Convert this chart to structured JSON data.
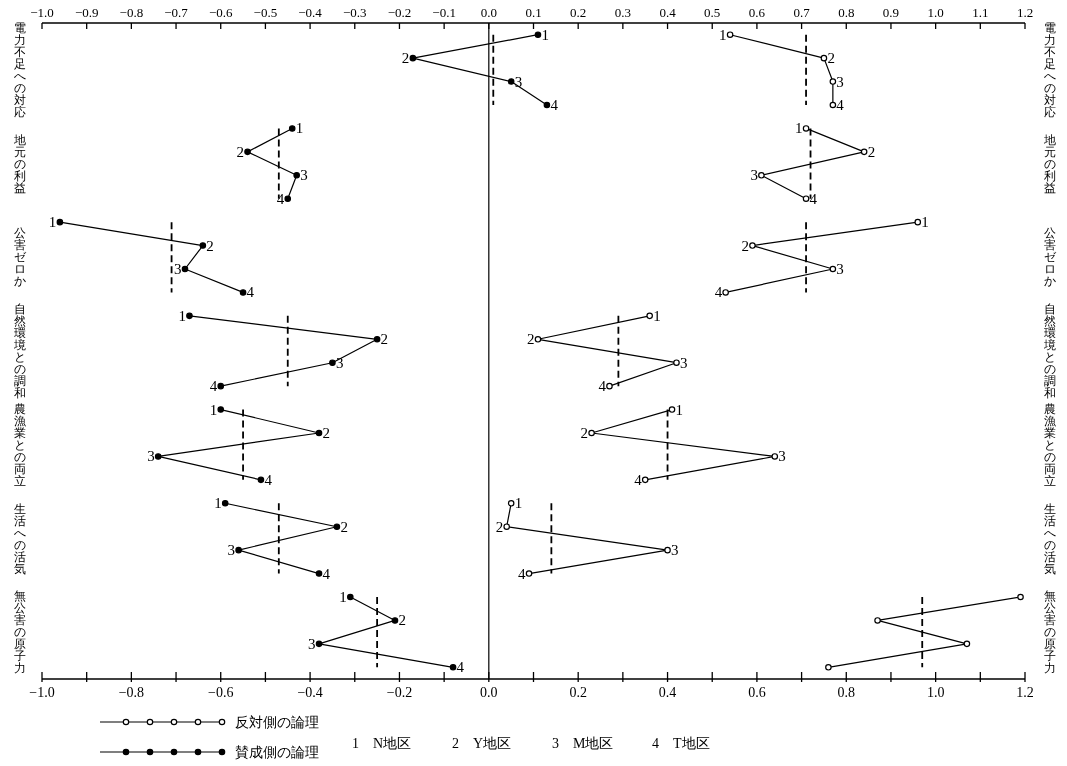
{
  "chart_data": {
    "type": "line",
    "orientation": "horizontal",
    "marker": "circle",
    "legend": "bottom left",
    "grid": false,
    "xlim": [
      -1.0,
      1.2
    ],
    "xticks": [
      {
        "value": -1.0,
        "label": "−1.0"
      },
      {
        "value": -0.9,
        "label": null
      },
      {
        "value": -0.8,
        "label": "−0.8"
      },
      {
        "value": -0.7,
        "label": null
      },
      {
        "value": -0.6,
        "label": "−0.6"
      },
      {
        "value": -0.5,
        "label": null
      },
      {
        "value": -0.4,
        "label": "−0.4"
      },
      {
        "value": -0.3,
        "label": null
      },
      {
        "value": -0.2,
        "label": "−0.2"
      },
      {
        "value": -0.1,
        "label": null
      },
      {
        "value": 0,
        "label": "0.0"
      },
      {
        "value": 0.1,
        "label": null
      },
      {
        "value": 0.2,
        "label": "0.2"
      },
      {
        "value": 0.3,
        "label": null
      },
      {
        "value": 0.4,
        "label": "0.4"
      },
      {
        "value": 0.5,
        "label": null
      },
      {
        "value": 0.6,
        "label": "0.6"
      },
      {
        "value": 0.7,
        "label": null
      },
      {
        "value": 0.8,
        "label": "0.8"
      },
      {
        "value": 0.9,
        "label": null
      },
      {
        "value": 1.0,
        "label": "1.0"
      },
      {
        "value": 1.1,
        "label": null
      },
      {
        "value": 1.2,
        "label": "1.2"
      }
    ],
    "x2lim": [
      -1.0,
      1.2
    ],
    "x2ticks": [
      {
        "value": -1.0,
        "label": "−1.0"
      },
      {
        "value": -0.9,
        "label": "−0.9"
      },
      {
        "value": -0.8,
        "label": "−0.8"
      },
      {
        "value": -0.7,
        "label": "−0.7"
      },
      {
        "value": -0.6,
        "label": "−0.6"
      },
      {
        "value": -0.5,
        "label": "−0.5"
      },
      {
        "value": -0.4,
        "label": "−0.4"
      },
      {
        "value": -0.3,
        "label": "−0.3"
      },
      {
        "value": -0.2,
        "label": "−0.2"
      },
      {
        "value": -0.1,
        "label": "−0.1"
      },
      {
        "value": 0,
        "label": "0.0"
      },
      {
        "value": 0.1,
        "label": "0.1"
      },
      {
        "value": 0.2,
        "label": "0.2"
      },
      {
        "value": 0.3,
        "label": "0.3"
      },
      {
        "value": 0.4,
        "label": "0.4"
      },
      {
        "value": 0.5,
        "label": "0.5"
      },
      {
        "value": 0.6,
        "label": "0.6"
      },
      {
        "value": 0.7,
        "label": "0.7"
      },
      {
        "value": 0.8,
        "label": "0.8"
      },
      {
        "value": 0.9,
        "label": "0.9"
      },
      {
        "value": 1.0,
        "label": "1.0"
      },
      {
        "value": 1.1,
        "label": "1.1"
      },
      {
        "value": 1.2,
        "label": "1.2"
      }
    ],
    "categories": [
      null,
      null,
      null,
      null,
      null,
      null,
      null,
      null,
      null,
      null,
      null,
      null,
      null,
      null,
      null,
      null,
      null,
      null,
      null,
      null,
      null,
      null,
      null,
      null,
      null,
      null,
      null,
      null
    ],
    "ref_lines": [
      {
        "axis": "x",
        "value": 0,
        "color": "#000000",
        "line_style": "solid"
      }
    ],
    "annotations": [
      "電力不足への対応",
      "電力不足への対応",
      "地元の利益",
      "地元の利益",
      "公害ゼロか",
      "公害ゼロか",
      "自然環境との調和",
      "自然環境との調和",
      "農漁業との両立",
      "農漁業との両立",
      "生活への活気",
      "生活への活気",
      "無公害の原子力",
      "無公害の原子力",
      "1　N地区",
      "2　Y地区",
      "3　M地区",
      "4　T地区",
      {
        "text": "1",
        "x": 0.54
      },
      {
        "text": "2",
        "x": 0.75
      },
      {
        "text": "3",
        "x": 0.77
      },
      {
        "text": "4",
        "x": 0.77
      },
      {
        "text": "1",
        "x": 0.11
      },
      {
        "text": "2",
        "x": -0.17
      },
      {
        "text": "3",
        "x": 0.05
      },
      {
        "text": "4",
        "x": 0.13
      },
      {
        "text": "1",
        "x": 0.71
      },
      {
        "text": "2",
        "x": 0.84
      },
      {
        "text": "3",
        "x": 0.61
      },
      {
        "text": "4",
        "x": 0.71
      },
      {
        "text": "1",
        "x": -0.44
      },
      {
        "text": "2",
        "x": -0.54
      },
      {
        "text": "3",
        "x": -0.43
      },
      {
        "text": "4",
        "x": -0.45
      },
      {
        "text": "1",
        "x": 0.96
      },
      {
        "text": "2",
        "x": 0.59
      },
      {
        "text": "3",
        "x": 0.77
      },
      {
        "text": "4",
        "x": 0.53
      },
      {
        "text": "1",
        "x": -0.96
      },
      {
        "text": "2",
        "x": -0.64
      },
      {
        "text": "3",
        "x": -0.68
      },
      {
        "text": "4",
        "x": -0.55
      },
      {
        "text": "1",
        "x": 0.05
      },
      {
        "text": "2",
        "x": 0.04
      },
      {
        "text": "3",
        "x": 0.4
      },
      {
        "text": "4",
        "x": 0.09
      },
      {
        "text": "1",
        "x": 0.36
      },
      {
        "text": "2",
        "x": 0.11
      },
      {
        "text": "3",
        "x": 0.42
      },
      {
        "text": "4",
        "x": 0.27
      },
      {
        "text": "1",
        "x": -0.67
      },
      {
        "text": "2",
        "x": -0.25
      },
      {
        "text": "3",
        "x": -0.35
      },
      {
        "text": "4",
        "x": -0.6
      },
      {
        "text": "1",
        "x": 0.41
      },
      {
        "text": "2",
        "x": 0.23
      },
      {
        "text": "3",
        "x": 0.64
      },
      {
        "text": "4",
        "x": 0.35
      },
      {
        "text": "1",
        "x": -0.6
      },
      {
        "text": "2",
        "x": -0.38
      },
      {
        "text": "3",
        "x": -0.74
      },
      {
        "text": "4",
        "x": -0.51
      },
      {
        "text": "1",
        "x": -0.59
      },
      {
        "text": "2",
        "x": -0.34
      },
      {
        "text": "3",
        "x": -0.56
      },
      {
        "text": "4",
        "x": -0.38
      },
      {
        "text": "1",
        "x": -0.31
      },
      {
        "text": "2",
        "x": -0.21
      },
      {
        "text": "3",
        "x": -0.38
      },
      {
        "text": "4",
        "x": -0.08
      }
    ],
    "series": [
      {
        "name": "反対側の論理",
        "color": "#000000",
        "values": [
          0.54,
          0.75,
          0.77,
          0.77,
          null,
          null,
          null,
          null,
          null,
          null,
          null,
          null,
          null,
          null,
          null,
          null,
          null,
          null,
          null,
          null,
          null,
          null,
          null,
          null,
          null,
          null,
          null,
          null
        ]
      },
      {
        "name": "賛成側の論理",
        "color": "#000000",
        "values": [
          0.11,
          -0.17,
          0.05,
          0.13,
          null,
          null,
          null,
          null,
          null,
          null,
          null,
          null,
          null,
          null,
          null,
          null,
          null,
          null,
          null,
          null,
          null,
          null,
          null,
          null,
          null,
          null,
          null,
          null
        ]
      },
      {
        "color": "#000000",
        "line_style": "dashed",
        "marker": "none",
        "values": [
          0.71,
          0.71,
          0.71,
          0.71,
          null,
          null,
          null,
          null,
          null,
          null,
          null,
          null,
          null,
          null,
          null,
          null,
          null,
          null,
          null,
          null,
          null,
          null,
          null,
          null,
          null,
          null,
          null,
          null
        ]
      },
      {
        "color": "#000000",
        "line_style": "dashed",
        "marker": "none",
        "values": [
          0.01,
          0.01,
          0.01,
          0.01,
          null,
          null,
          null,
          null,
          null,
          null,
          null,
          null,
          null,
          null,
          null,
          null,
          null,
          null,
          null,
          null,
          null,
          null,
          null,
          null,
          null,
          null,
          null,
          null
        ]
      },
      {
        "color": "#000000",
        "values": [
          null,
          null,
          null,
          null,
          0.71,
          0.84,
          0.61,
          0.71,
          null,
          null,
          null,
          null,
          null,
          null,
          null,
          null,
          null,
          null,
          null,
          null,
          null,
          null,
          null,
          null,
          null,
          null,
          null,
          null
        ]
      },
      {
        "color": "#000000",
        "values": [
          null,
          null,
          null,
          null,
          -0.44,
          -0.54,
          -0.43,
          -0.45,
          null,
          null,
          null,
          null,
          null,
          null,
          null,
          null,
          null,
          null,
          null,
          null,
          null,
          null,
          null,
          null,
          null,
          null,
          null,
          null
        ]
      },
      {
        "color": "#000000",
        "line_style": "dashed",
        "marker": "none",
        "values": [
          null,
          null,
          null,
          null,
          0.72,
          0.72,
          0.72,
          0.72,
          null,
          null,
          null,
          null,
          null,
          null,
          null,
          null,
          null,
          null,
          null,
          null,
          null,
          null,
          null,
          null,
          null,
          null,
          null,
          null
        ]
      },
      {
        "color": "#000000",
        "line_style": "dashed",
        "marker": "none",
        "values": [
          null,
          null,
          null,
          null,
          -0.47,
          -0.47,
          -0.47,
          -0.47,
          null,
          null,
          null,
          null,
          null,
          null,
          null,
          null,
          null,
          null,
          null,
          null,
          null,
          null,
          null,
          null,
          null,
          null,
          null,
          null
        ]
      },
      {
        "color": "#000000",
        "values": [
          null,
          null,
          null,
          null,
          null,
          null,
          null,
          null,
          0.96,
          0.59,
          0.77,
          0.53,
          null,
          null,
          null,
          null,
          null,
          null,
          null,
          null,
          null,
          null,
          null,
          null,
          null,
          null,
          null,
          null
        ]
      },
      {
        "color": "#000000",
        "values": [
          null,
          null,
          null,
          null,
          null,
          null,
          null,
          null,
          -0.96,
          -0.64,
          -0.68,
          -0.55,
          null,
          null,
          null,
          null,
          null,
          null,
          null,
          null,
          null,
          null,
          null,
          null,
          null,
          null,
          null,
          null
        ]
      },
      {
        "color": "#000000",
        "line_style": "dashed",
        "marker": "none",
        "values": [
          null,
          null,
          null,
          null,
          null,
          null,
          null,
          null,
          0.71,
          0.71,
          0.71,
          0.71,
          null,
          null,
          null,
          null,
          null,
          null,
          null,
          null,
          null,
          null,
          null,
          null,
          null,
          null,
          null,
          null
        ]
      },
      {
        "color": "#000000",
        "line_style": "dashed",
        "marker": "none",
        "values": [
          null,
          null,
          null,
          null,
          null,
          null,
          null,
          null,
          -0.71,
          -0.71,
          -0.71,
          -0.71,
          null,
          null,
          null,
          null,
          null,
          null,
          null,
          null,
          null,
          null,
          null,
          null,
          null,
          null,
          null,
          null
        ]
      },
      {
        "color": "#000000",
        "values": [
          null,
          null,
          null,
          null,
          null,
          null,
          null,
          null,
          null,
          null,
          null,
          null,
          0.36,
          0.11,
          0.42,
          0.27,
          null,
          null,
          null,
          null,
          null,
          null,
          null,
          null,
          null,
          null,
          null,
          null
        ]
      },
      {
        "color": "#000000",
        "values": [
          null,
          null,
          null,
          null,
          null,
          null,
          null,
          null,
          null,
          null,
          null,
          null,
          -0.67,
          -0.25,
          -0.35,
          -0.6,
          null,
          null,
          null,
          null,
          null,
          null,
          null,
          null,
          null,
          null,
          null,
          null
        ]
      },
      {
        "color": "#000000",
        "line_style": "dashed",
        "marker": "none",
        "values": [
          null,
          null,
          null,
          null,
          null,
          null,
          null,
          null,
          null,
          null,
          null,
          null,
          0.29,
          0.29,
          0.29,
          0.29,
          null,
          null,
          null,
          null,
          null,
          null,
          null,
          null,
          null,
          null,
          null,
          null
        ]
      },
      {
        "color": "#000000",
        "line_style": "dashed",
        "marker": "none",
        "values": [
          null,
          null,
          null,
          null,
          null,
          null,
          null,
          null,
          null,
          null,
          null,
          null,
          -0.45,
          -0.45,
          -0.45,
          -0.45,
          null,
          null,
          null,
          null,
          null,
          null,
          null,
          null,
          null,
          null,
          null,
          null
        ]
      },
      {
        "color": "#000000",
        "values": [
          null,
          null,
          null,
          null,
          null,
          null,
          null,
          null,
          null,
          null,
          null,
          null,
          null,
          null,
          null,
          null,
          0.41,
          0.23,
          0.64,
          0.35,
          null,
          null,
          null,
          null,
          null,
          null,
          null,
          null
        ]
      },
      {
        "color": "#000000",
        "values": [
          null,
          null,
          null,
          null,
          null,
          null,
          null,
          null,
          null,
          null,
          null,
          null,
          null,
          null,
          null,
          null,
          -0.6,
          -0.38,
          -0.74,
          -0.51,
          null,
          null,
          null,
          null,
          null,
          null,
          null,
          null
        ]
      },
      {
        "color": "#000000",
        "line_style": "dashed",
        "marker": "none",
        "values": [
          null,
          null,
          null,
          null,
          null,
          null,
          null,
          null,
          null,
          null,
          null,
          null,
          null,
          null,
          null,
          null,
          0.4,
          0.4,
          0.4,
          0.4,
          null,
          null,
          null,
          null,
          null,
          null,
          null,
          null
        ]
      },
      {
        "color": "#000000",
        "line_style": "dashed",
        "marker": "none",
        "values": [
          null,
          null,
          null,
          null,
          null,
          null,
          null,
          null,
          null,
          null,
          null,
          null,
          null,
          null,
          null,
          null,
          -0.55,
          -0.55,
          -0.55,
          -0.55,
          null,
          null,
          null,
          null,
          null,
          null,
          null,
          null
        ]
      },
      {
        "color": "#000000",
        "values": [
          null,
          null,
          null,
          null,
          null,
          null,
          null,
          null,
          null,
          null,
          null,
          null,
          null,
          null,
          null,
          null,
          null,
          null,
          null,
          null,
          0.05,
          0.04,
          0.4,
          0.09,
          null,
          null,
          null,
          null
        ]
      },
      {
        "color": "#000000",
        "values": [
          null,
          null,
          null,
          null,
          null,
          null,
          null,
          null,
          null,
          null,
          null,
          null,
          null,
          null,
          null,
          null,
          null,
          null,
          null,
          null,
          -0.59,
          -0.34,
          -0.56,
          -0.38,
          null,
          null,
          null,
          null
        ]
      },
      {
        "color": "#000000",
        "line_style": "dashed",
        "marker": "none",
        "values": [
          null,
          null,
          null,
          null,
          null,
          null,
          null,
          null,
          null,
          null,
          null,
          null,
          null,
          null,
          null,
          null,
          null,
          null,
          null,
          null,
          0.14,
          0.14,
          0.14,
          0.14,
          null,
          null,
          null,
          null
        ]
      },
      {
        "color": "#000000",
        "line_style": "dashed",
        "marker": "none",
        "values": [
          null,
          null,
          null,
          null,
          null,
          null,
          null,
          null,
          null,
          null,
          null,
          null,
          null,
          null,
          null,
          null,
          null,
          null,
          null,
          null,
          -0.47,
          -0.47,
          -0.47,
          -0.47,
          null,
          null,
          null,
          null
        ]
      },
      {
        "color": "#000000",
        "values": [
          null,
          null,
          null,
          null,
          null,
          null,
          null,
          null,
          null,
          null,
          null,
          null,
          null,
          null,
          null,
          null,
          null,
          null,
          null,
          null,
          null,
          null,
          null,
          null,
          1.19,
          0.87,
          1.07,
          0.76
        ]
      },
      {
        "color": "#000000",
        "values": [
          null,
          null,
          null,
          null,
          null,
          null,
          null,
          null,
          null,
          null,
          null,
          null,
          null,
          null,
          null,
          null,
          null,
          null,
          null,
          null,
          null,
          null,
          null,
          null,
          -0.31,
          -0.21,
          -0.38,
          -0.08
        ]
      },
      {
        "color": "#000000",
        "line_style": "dashed",
        "marker": "none",
        "values": [
          null,
          null,
          null,
          null,
          null,
          null,
          null,
          null,
          null,
          null,
          null,
          null,
          null,
          null,
          null,
          null,
          null,
          null,
          null,
          null,
          null,
          null,
          null,
          null,
          0.97,
          0.97,
          0.97,
          0.97
        ]
      },
      {
        "color": "#000000",
        "line_style": "dashed",
        "marker": "none",
        "values": [
          null,
          null,
          null,
          null,
          null,
          null,
          null,
          null,
          null,
          null,
          null,
          null,
          null,
          null,
          null,
          null,
          null,
          null,
          null,
          null,
          null,
          null,
          null,
          null,
          -0.25,
          -0.25,
          -0.25,
          -0.25
        ]
      }
    ]
  }
}
